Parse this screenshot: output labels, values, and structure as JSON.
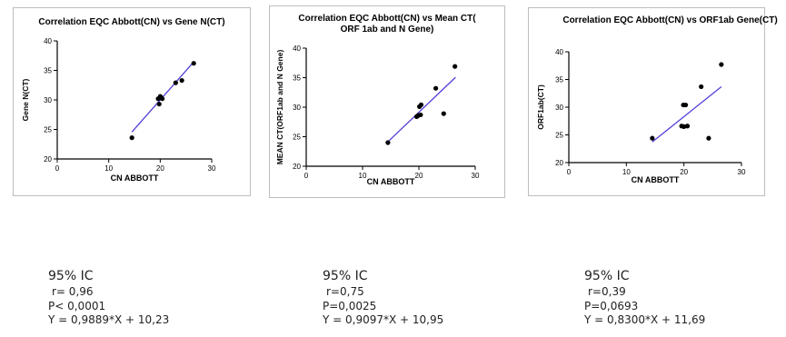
{
  "chart_data": [
    {
      "type": "scatter",
      "title": "Correlation EQC Abbott(CN) vs Gene N(CT)",
      "xlabel": "CN ABBOTT",
      "ylabel": "Gene N(CT)",
      "xlim": [
        0,
        30
      ],
      "ylim": [
        20,
        40
      ],
      "xticks": [
        "0",
        "10",
        "20",
        "30"
      ],
      "yticks": [
        "20",
        "25",
        "30",
        "35",
        "40"
      ],
      "points": [
        {
          "x": 14.5,
          "y": 23.6
        },
        {
          "x": 19.6,
          "y": 30.2
        },
        {
          "x": 19.8,
          "y": 29.3
        },
        {
          "x": 20.0,
          "y": 30.6
        },
        {
          "x": 20.2,
          "y": 30.4
        },
        {
          "x": 20.4,
          "y": 30.2
        },
        {
          "x": 23.0,
          "y": 32.9
        },
        {
          "x": 24.2,
          "y": 33.3
        },
        {
          "x": 26.5,
          "y": 36.2
        }
      ],
      "fit": {
        "slope": 0.9889,
        "intercept": 10.23,
        "x_range": [
          14.5,
          26.5
        ]
      },
      "fit_color": "#4f3fd8"
    },
    {
      "type": "scatter",
      "title": "Correlation EQC Abbott(CN) vs Mean CT( ORF 1ab and N Gene)",
      "xlabel": "CN ABBOTT",
      "ylabel": "MEAN CT(ORF1ab and N Gene)",
      "xlim": [
        0,
        30
      ],
      "ylim": [
        20,
        40
      ],
      "xticks": [
        "0",
        "10",
        "20",
        "30"
      ],
      "yticks": [
        "20",
        "25",
        "30",
        "35",
        "40"
      ],
      "points": [
        {
          "x": 14.5,
          "y": 24.0
        },
        {
          "x": 19.6,
          "y": 28.4
        },
        {
          "x": 19.9,
          "y": 28.6
        },
        {
          "x": 20.1,
          "y": 30.1
        },
        {
          "x": 20.3,
          "y": 28.7
        },
        {
          "x": 20.4,
          "y": 30.4
        },
        {
          "x": 23.0,
          "y": 33.2
        },
        {
          "x": 24.4,
          "y": 28.9
        },
        {
          "x": 26.4,
          "y": 36.9
        }
      ],
      "fit": {
        "slope": 0.9097,
        "intercept": 10.95,
        "x_range": [
          14.5,
          26.5
        ]
      },
      "fit_color": "#4f3fd8"
    },
    {
      "type": "scatter",
      "title": "Correlation EQC Abbott(CN) vs ORF1ab Gene(CT)",
      "xlabel": "CN ABBOTT",
      "ylabel": "ORF1ab(CT)",
      "xlim": [
        0,
        30
      ],
      "ylim": [
        20,
        40
      ],
      "xticks": [
        "0",
        "10",
        "20",
        "30"
      ],
      "yticks": [
        "20",
        "25",
        "30",
        "35",
        "40"
      ],
      "points": [
        {
          "x": 14.5,
          "y": 24.4
        },
        {
          "x": 19.6,
          "y": 26.6
        },
        {
          "x": 19.9,
          "y": 30.4
        },
        {
          "x": 20.0,
          "y": 26.5
        },
        {
          "x": 20.3,
          "y": 30.4
        },
        {
          "x": 20.6,
          "y": 26.6
        },
        {
          "x": 23.0,
          "y": 33.7
        },
        {
          "x": 24.3,
          "y": 24.4
        },
        {
          "x": 26.5,
          "y": 37.7
        }
      ],
      "fit": {
        "slope": 0.83,
        "intercept": 11.69,
        "x_range": [
          14.5,
          26.5
        ]
      },
      "fit_color": "#4f3fd8"
    }
  ],
  "stats": [
    {
      "heading": "95% IC",
      "r": "r= 0,96",
      "p": "P< 0,0001",
      "eq": "Y = 0,9889*X + 10,23"
    },
    {
      "heading": "95% IC",
      "r": "r=0,75",
      "p": "P=0,0025",
      "eq": "Y = 0,9097*X + 10,95"
    },
    {
      "heading": "95% IC",
      "r": "r=0,39",
      "p": "P=0,0693",
      "eq": "Y = 0,8300*X + 11,69"
    }
  ]
}
